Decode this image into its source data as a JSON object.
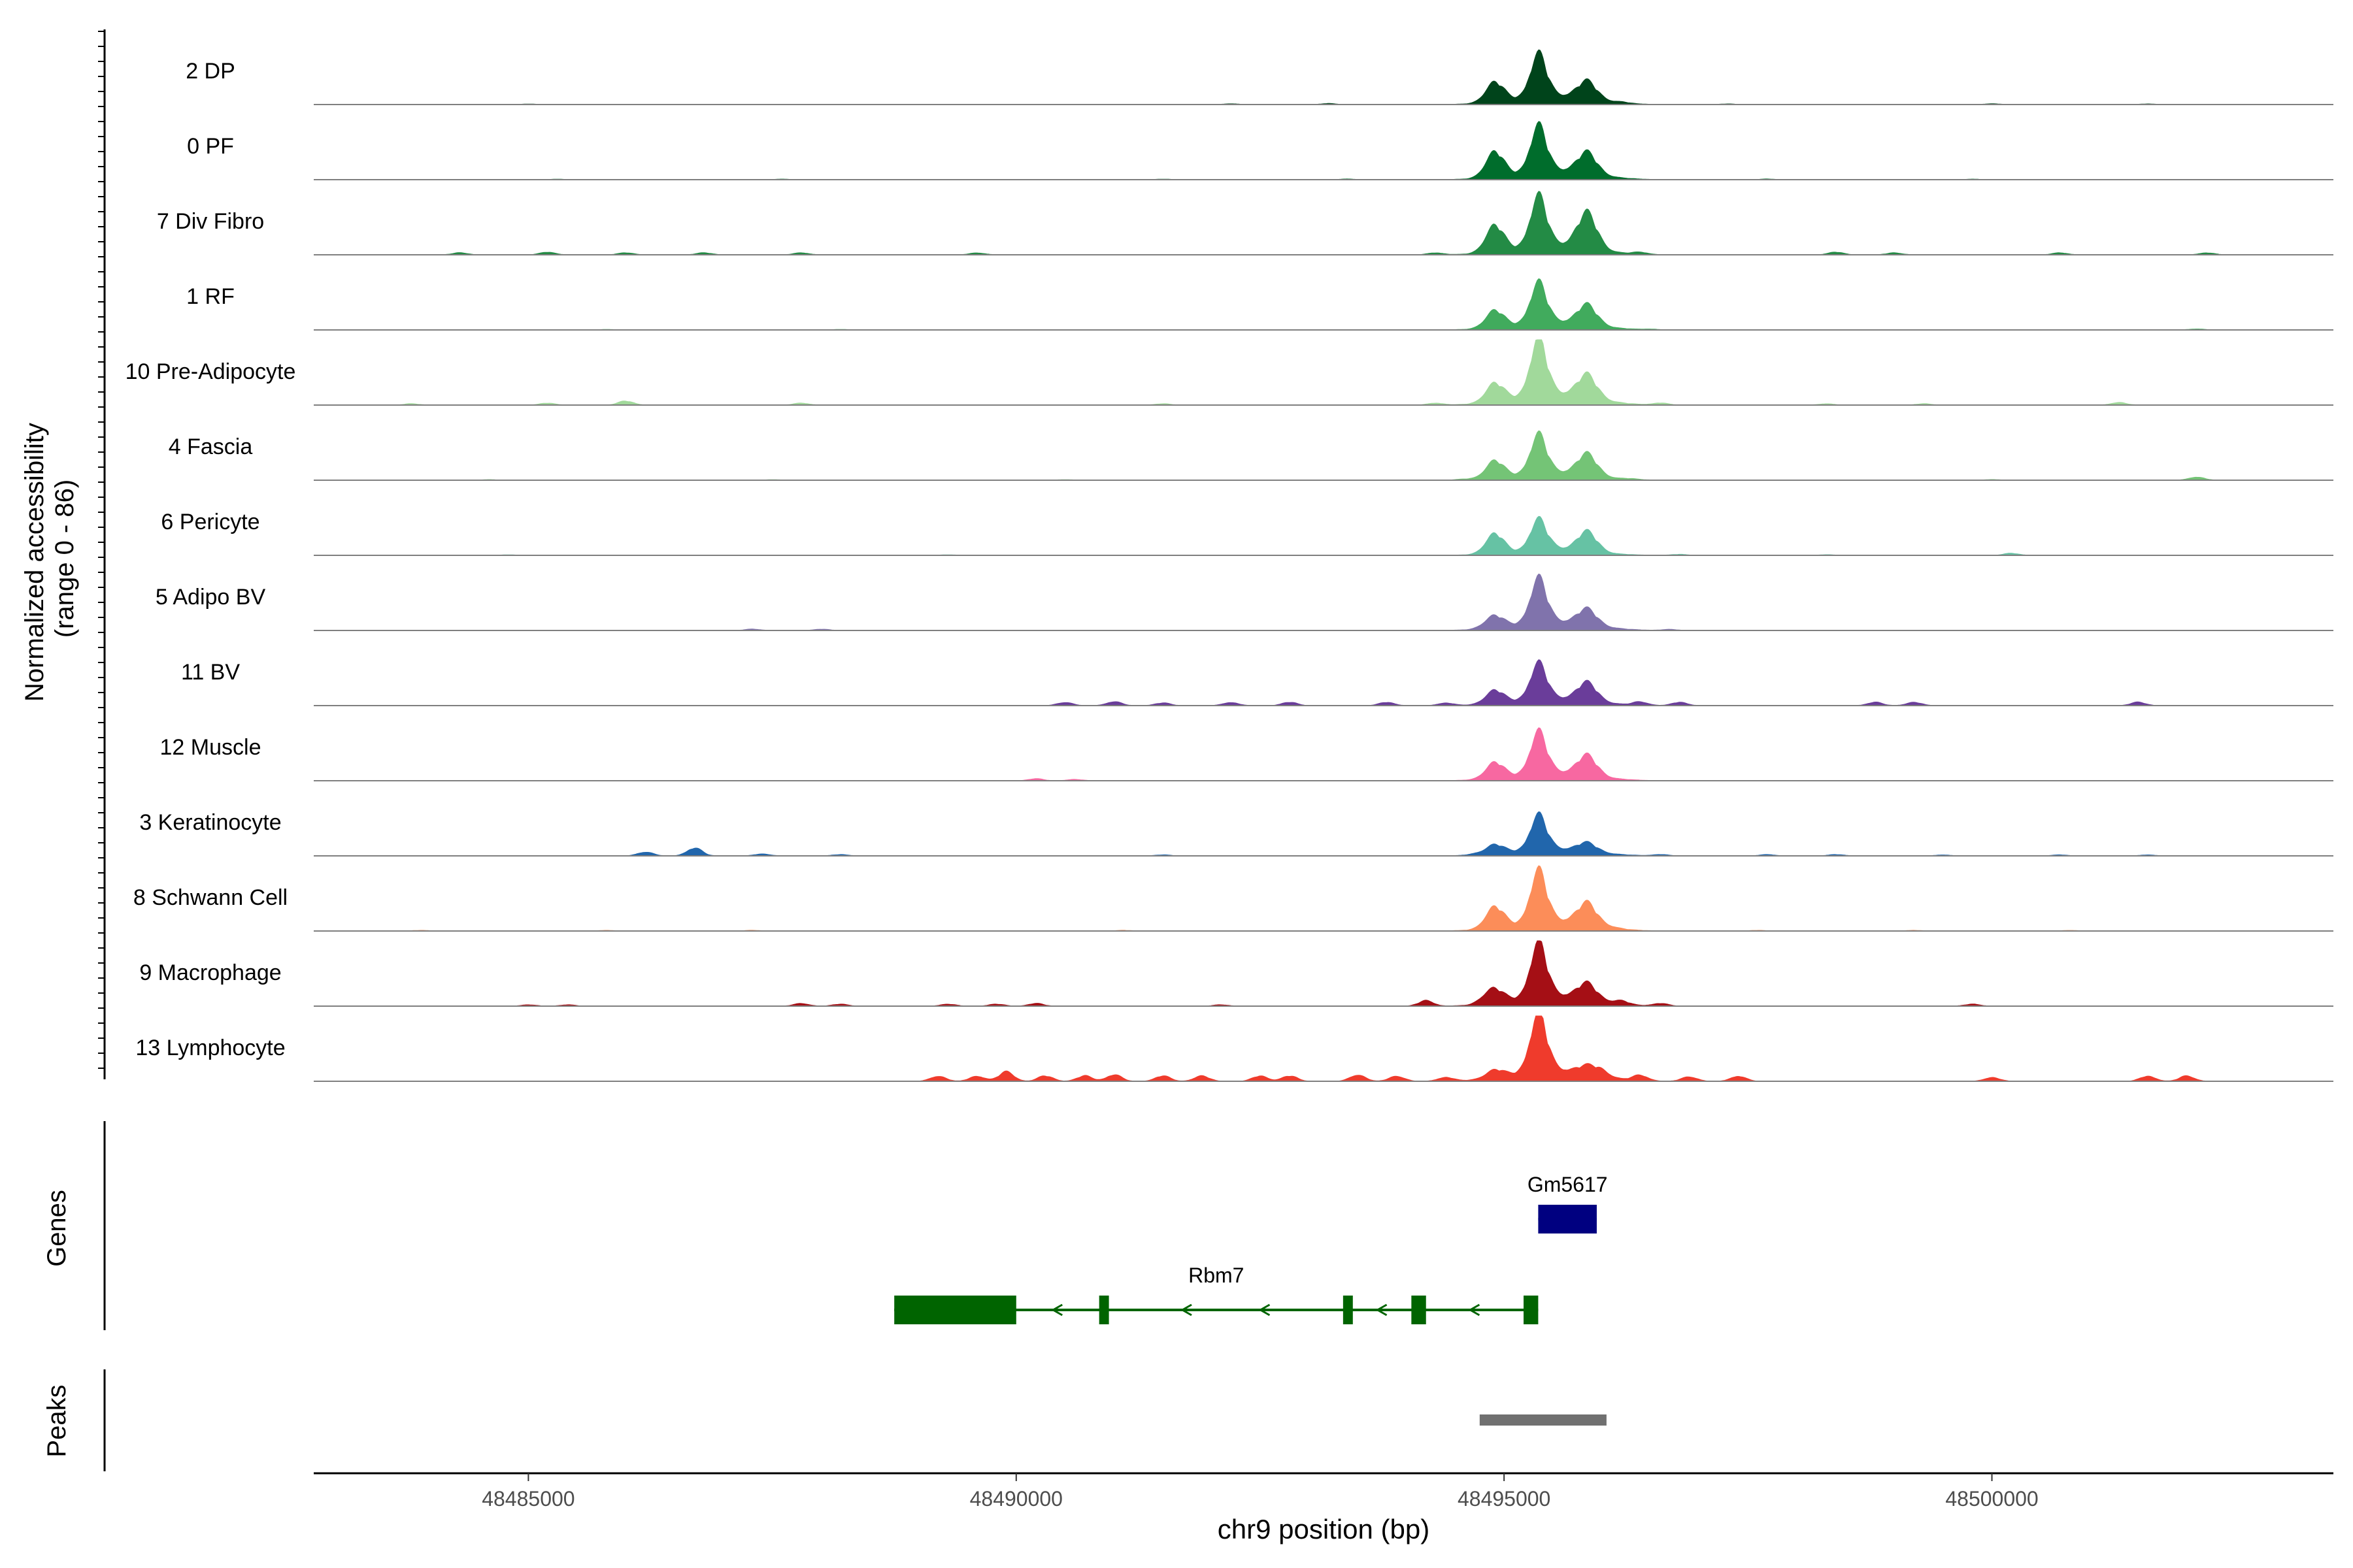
{
  "chart_data": {
    "type": "area",
    "coverage_range_label": "Normalized accessibility\n(range 0 - 86)",
    "y_axis_title_lines": [
      "Normalized accessibility",
      "(range 0 - 86)"
    ],
    "ylim": [
      0,
      86
    ],
    "x_axis_title": "chr9 position (bp)",
    "xlim": [
      48482800,
      48503500
    ],
    "x_ticks": [
      {
        "value": 48485000,
        "label": "48485000"
      },
      {
        "value": 48490000,
        "label": "48490000"
      },
      {
        "value": 48495000,
        "label": "48495000"
      },
      {
        "value": 48500000,
        "label": "48500000"
      }
    ],
    "tracks": [
      {
        "name": "2 DP",
        "color": "#00441B",
        "peak": 62,
        "shoulders": [
          30,
          25
        ],
        "bg": [
          [
            48485000,
            0.8
          ],
          [
            48492200,
            1.2
          ],
          [
            48493200,
            1.5
          ],
          [
            48496200,
            1.5
          ],
          [
            48497300,
            1
          ],
          [
            48500000,
            1.2
          ],
          [
            48501600,
            1
          ]
        ]
      },
      {
        "name": "0 PF",
        "color": "#006D2C",
        "peak": 66,
        "shoulders": [
          38,
          30
        ],
        "bg": [
          [
            48485300,
            0.8
          ],
          [
            48487600,
            0.8
          ],
          [
            48491500,
            0.8
          ],
          [
            48493400,
            1
          ],
          [
            48497700,
            1
          ],
          [
            48499800,
            0.8
          ]
        ]
      },
      {
        "name": "7 Div Fibro",
        "color": "#238B45",
        "peak": 72,
        "shoulders": [
          40,
          50
        ],
        "bg": [
          [
            48484300,
            3
          ],
          [
            48485200,
            4
          ],
          [
            48486000,
            3
          ],
          [
            48486800,
            3
          ],
          [
            48487800,
            3
          ],
          [
            48489600,
            3
          ],
          [
            48494300,
            3
          ],
          [
            48496400,
            3
          ],
          [
            48498400,
            4
          ],
          [
            48499000,
            3
          ],
          [
            48500700,
            3
          ],
          [
            48502200,
            3
          ]
        ]
      },
      {
        "name": "1 RF",
        "color": "#41AB5D",
        "peak": 58,
        "shoulders": [
          26,
          28
        ],
        "bg": [
          [
            48485800,
            0.8
          ],
          [
            48488200,
            0.8
          ],
          [
            48496500,
            1
          ],
          [
            48502100,
            1.5
          ]
        ]
      },
      {
        "name": "10 Pre-Adipocyte",
        "color": "#A1D99B",
        "peak": 82,
        "shoulders": [
          28,
          32
        ],
        "bg": [
          [
            48483800,
            2
          ],
          [
            48485200,
            3
          ],
          [
            48486000,
            6
          ],
          [
            48487800,
            3
          ],
          [
            48491500,
            2
          ],
          [
            48494300,
            3
          ],
          [
            48496600,
            3
          ],
          [
            48498300,
            2
          ],
          [
            48499300,
            2
          ],
          [
            48501300,
            4
          ]
        ]
      },
      {
        "name": "4 Fascia",
        "color": "#74C476",
        "peak": 56,
        "shoulders": [
          26,
          30
        ],
        "bg": [
          [
            48484600,
            0.8
          ],
          [
            48487500,
            0.8
          ],
          [
            48490500,
            0.8
          ],
          [
            48494600,
            1
          ],
          [
            48496300,
            1
          ],
          [
            48500000,
            1
          ],
          [
            48502100,
            5
          ]
        ]
      },
      {
        "name": "6 Pericyte",
        "color": "#66C2A4",
        "peak": 44,
        "shoulders": [
          30,
          28
        ],
        "bg": [
          [
            48484800,
            0.8
          ],
          [
            48489300,
            0.8
          ],
          [
            48495500,
            1.5
          ],
          [
            48496800,
            1.5
          ],
          [
            48498300,
            1
          ],
          [
            48500200,
            3
          ]
        ]
      },
      {
        "name": "5 Adipo BV",
        "color": "#8073AC",
        "peak": 64,
        "shoulders": [
          18,
          22
        ],
        "bg": [
          [
            48487300,
            2
          ],
          [
            48488000,
            2
          ],
          [
            48494800,
            1.5
          ],
          [
            48496700,
            1.5
          ]
        ]
      },
      {
        "name": "11 BV",
        "color": "#6A3D9A",
        "peak": 52,
        "shoulders": [
          20,
          26
        ],
        "bg": [
          [
            48490500,
            5
          ],
          [
            48491000,
            6
          ],
          [
            48491500,
            4
          ],
          [
            48492200,
            5
          ],
          [
            48492800,
            5
          ],
          [
            48493800,
            5
          ],
          [
            48494400,
            4
          ],
          [
            48496400,
            5
          ],
          [
            48496800,
            5
          ],
          [
            48498800,
            5
          ],
          [
            48499200,
            5
          ],
          [
            48501500,
            5
          ]
        ]
      },
      {
        "name": "12 Muscle",
        "color": "#F768A1",
        "peak": 60,
        "shoulders": [
          24,
          28
        ],
        "bg": [
          [
            48490200,
            3
          ],
          [
            48490600,
            2
          ]
        ]
      },
      {
        "name": "3 Keratinocyte",
        "color": "#2166AC",
        "peak": 50,
        "shoulders": [
          14,
          12
        ],
        "bg": [
          [
            48486200,
            6
          ],
          [
            48486700,
            12
          ],
          [
            48487400,
            3
          ],
          [
            48488200,
            2
          ],
          [
            48491500,
            1.5
          ],
          [
            48494700,
            1.5
          ],
          [
            48496600,
            2
          ],
          [
            48497700,
            2
          ],
          [
            48498400,
            2
          ],
          [
            48499500,
            1.5
          ],
          [
            48500700,
            1.5
          ],
          [
            48501600,
            1.5
          ]
        ]
      },
      {
        "name": "8 Schwann Cell",
        "color": "#FC8D59",
        "peak": 74,
        "shoulders": [
          32,
          30
        ],
        "bg": [
          [
            48483900,
            1
          ],
          [
            48485800,
            1
          ],
          [
            48487300,
            1
          ],
          [
            48491100,
            1
          ],
          [
            48496100,
            1.5
          ],
          [
            48497600,
            1
          ],
          [
            48499200,
            1
          ],
          [
            48500800,
            1
          ]
        ]
      },
      {
        "name": "9 Macrophage",
        "color": "#A50F15",
        "peak": 78,
        "shoulders": [
          20,
          22
        ],
        "bg": [
          [
            48485000,
            2
          ],
          [
            48485400,
            2
          ],
          [
            48487800,
            4
          ],
          [
            48488200,
            3
          ],
          [
            48489300,
            3
          ],
          [
            48489800,
            3
          ],
          [
            48490200,
            4
          ],
          [
            48492100,
            2
          ],
          [
            48494200,
            8
          ],
          [
            48494800,
            5
          ],
          [
            48496200,
            5
          ],
          [
            48496600,
            4
          ],
          [
            48499800,
            3
          ]
        ]
      },
      {
        "name": "13 Lymphocyte",
        "color": "#EF3B2C",
        "peak": 84,
        "shoulders": [
          12,
          10
        ],
        "bg": [
          [
            48489200,
            8
          ],
          [
            48489600,
            8
          ],
          [
            48489900,
            14
          ],
          [
            48490300,
            8
          ],
          [
            48490700,
            8
          ],
          [
            48491000,
            10
          ],
          [
            48491500,
            8
          ],
          [
            48491900,
            8
          ],
          [
            48492500,
            8
          ],
          [
            48492800,
            8
          ],
          [
            48493500,
            10
          ],
          [
            48493900,
            8
          ],
          [
            48494400,
            6
          ],
          [
            48496000,
            8
          ],
          [
            48496400,
            8
          ],
          [
            48496900,
            7
          ],
          [
            48497400,
            8
          ],
          [
            48500000,
            6
          ],
          [
            48501600,
            8
          ],
          [
            48502000,
            8
          ]
        ]
      }
    ],
    "genes": [
      {
        "name": "Gm5617",
        "strand": "+",
        "start": 48495350,
        "end": 48495950,
        "exons": [
          [
            48495350,
            48495950
          ]
        ],
        "color": "#000080"
      },
      {
        "name": "Rbm7",
        "strand": "-",
        "start": 48488750,
        "end": 48495350,
        "exons": [
          [
            48488750,
            48490000
          ],
          [
            48490850,
            48490950
          ],
          [
            48493350,
            48493450
          ],
          [
            48494050,
            48494200
          ],
          [
            48495200,
            48495350
          ]
        ],
        "color": "#006400"
      }
    ],
    "peaks": [
      {
        "start": 48494750,
        "end": 48496050,
        "color": "#707070"
      }
    ],
    "panel_labels": {
      "genes": "Genes",
      "peaks": "Peaks"
    }
  }
}
